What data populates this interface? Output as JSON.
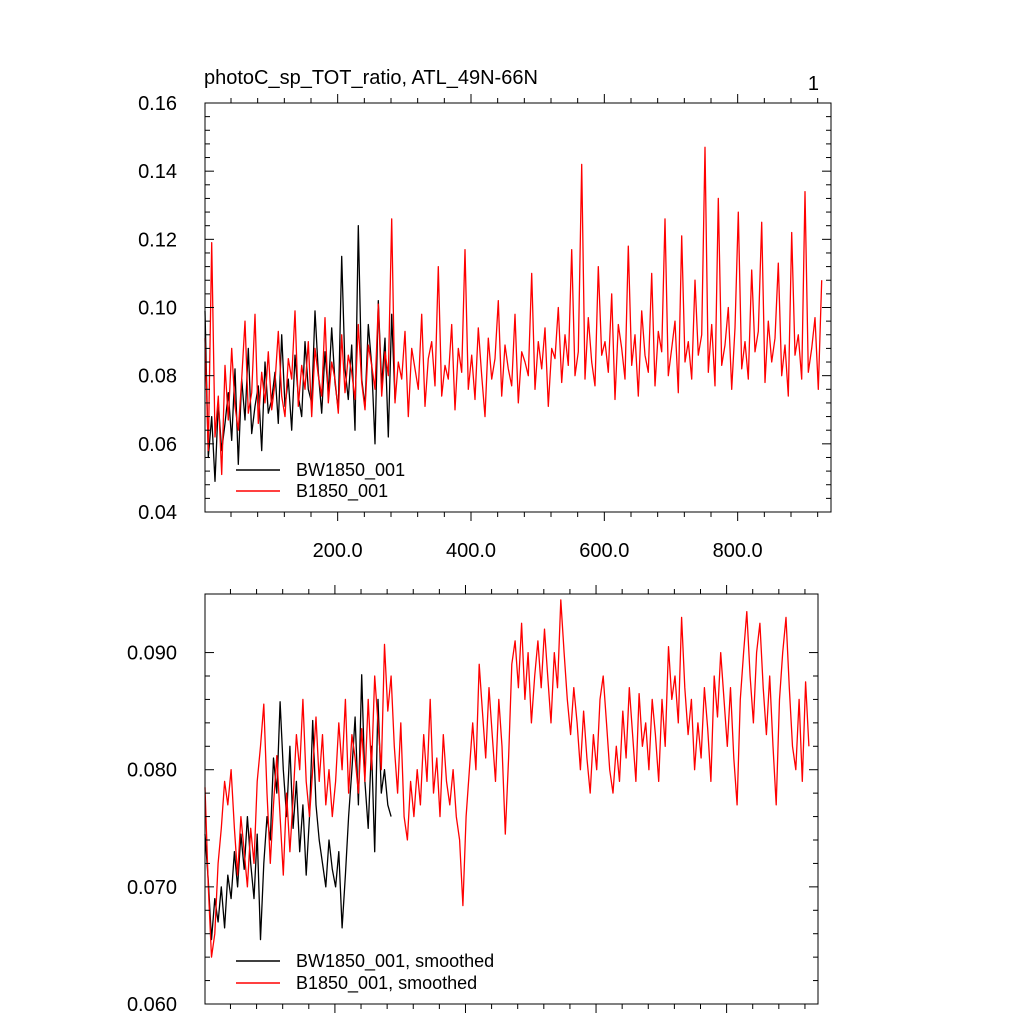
{
  "chart_data": [
    {
      "type": "line",
      "title": "photoC_sp_TOT_ratio, ATL_49N-66N",
      "panel_label": "1",
      "xlabel": "",
      "ylabel": "",
      "xlim": [
        1,
        940
      ],
      "ylim": [
        0.04,
        0.16
      ],
      "x_ticks": [
        200,
        400,
        600,
        800
      ],
      "x_tick_labels": [
        "200.0",
        "400.0",
        "600.0",
        "800.0"
      ],
      "y_ticks": [
        0.04,
        0.06,
        0.08,
        0.1,
        0.12,
        0.14,
        0.16
      ],
      "y_tick_labels": [
        "0.04",
        "0.06",
        "0.08",
        "0.10",
        "0.12",
        "0.14",
        "0.16"
      ],
      "legend_position": "bottom-left",
      "series": [
        {
          "name": "BW1850_001",
          "color": "#000000",
          "x_start": 1,
          "x_step": 5,
          "values": [
            0.099,
            0.056,
            0.068,
            0.049,
            0.072,
            0.058,
            0.066,
            0.075,
            0.061,
            0.082,
            0.054,
            0.079,
            0.067,
            0.088,
            0.063,
            0.071,
            0.077,
            0.058,
            0.084,
            0.069,
            0.073,
            0.081,
            0.066,
            0.092,
            0.071,
            0.079,
            0.064,
            0.086,
            0.074,
            0.068,
            0.09,
            0.076,
            0.072,
            0.099,
            0.081,
            0.069,
            0.087,
            0.075,
            0.094,
            0.078,
            0.07,
            0.115,
            0.082,
            0.073,
            0.089,
            0.064,
            0.124,
            0.079,
            0.071,
            0.095,
            0.083,
            0.06,
            0.102,
            0.077,
            0.091,
            0.062,
            0.098,
            0.073
          ]
        },
        {
          "name": "B1850_001",
          "color": "#ff0000",
          "x_start": 1,
          "x_step": 5,
          "values": [
            0.091,
            0.058,
            0.119,
            0.062,
            0.074,
            0.051,
            0.083,
            0.067,
            0.088,
            0.071,
            0.064,
            0.079,
            0.096,
            0.069,
            0.075,
            0.098,
            0.066,
            0.081,
            0.072,
            0.087,
            0.07,
            0.078,
            0.093,
            0.074,
            0.068,
            0.085,
            0.079,
            0.099,
            0.071,
            0.083,
            0.076,
            0.09,
            0.068,
            0.088,
            0.08,
            0.074,
            0.097,
            0.072,
            0.084,
            0.079,
            0.069,
            0.092,
            0.075,
            0.086,
            0.081,
            0.073,
            0.095,
            0.078,
            0.07,
            0.089,
            0.083,
            0.076,
            0.101,
            0.074,
            0.087,
            0.08,
            0.126,
            0.072,
            0.084,
            0.079,
            0.093,
            0.068,
            0.088,
            0.082,
            0.076,
            0.098,
            0.071,
            0.085,
            0.09,
            0.077,
            0.112,
            0.074,
            0.083,
            0.079,
            0.095,
            0.07,
            0.088,
            0.081,
            0.117,
            0.076,
            0.086,
            0.073,
            0.094,
            0.08,
            0.068,
            0.091,
            0.079,
            0.085,
            0.102,
            0.074,
            0.089,
            0.082,
            0.077,
            0.098,
            0.072,
            0.087,
            0.084,
            0.08,
            0.11,
            0.076,
            0.09,
            0.082,
            0.094,
            0.071,
            0.088,
            0.085,
            0.1,
            0.078,
            0.092,
            0.083,
            0.117,
            0.08,
            0.087,
            0.142,
            0.079,
            0.097,
            0.084,
            0.077,
            0.112,
            0.086,
            0.09,
            0.081,
            0.104,
            0.073,
            0.095,
            0.088,
            0.079,
            0.118,
            0.083,
            0.092,
            0.074,
            0.099,
            0.086,
            0.081,
            0.11,
            0.077,
            0.093,
            0.087,
            0.126,
            0.08,
            0.088,
            0.096,
            0.075,
            0.121,
            0.084,
            0.09,
            0.079,
            0.108,
            0.086,
            0.092,
            0.147,
            0.081,
            0.095,
            0.077,
            0.132,
            0.083,
            0.089,
            0.1,
            0.076,
            0.094,
            0.128,
            0.082,
            0.09,
            0.079,
            0.111,
            0.087,
            0.093,
            0.125,
            0.078,
            0.096,
            0.084,
            0.091,
            0.113,
            0.08,
            0.089,
            0.074,
            0.122,
            0.086,
            0.092,
            0.079,
            0.134,
            0.081,
            0.088,
            0.097,
            0.076,
            0.108
          ]
        }
      ]
    },
    {
      "type": "line",
      "title": "",
      "xlabel": "",
      "ylabel": "",
      "xlim": [
        1,
        940
      ],
      "ylim": [
        0.06,
        0.095
      ],
      "x_ticks": [
        200,
        400,
        600,
        800
      ],
      "y_ticks": [
        0.06,
        0.07,
        0.08,
        0.09
      ],
      "y_tick_labels": [
        "0.060",
        "0.070",
        "0.080",
        "0.090"
      ],
      "legend_position": "bottom-left",
      "series": [
        {
          "name": "BW1850_001, smoothed",
          "color": "#000000",
          "x_start": 1,
          "x_step": 5,
          "values": [
            0.0745,
            0.0705,
            0.0655,
            0.069,
            0.067,
            0.07,
            0.0665,
            0.071,
            0.069,
            0.073,
            0.07,
            0.0745,
            0.0715,
            0.076,
            0.072,
            0.069,
            0.0745,
            0.0655,
            0.072,
            0.076,
            0.074,
            0.081,
            0.078,
            0.0858,
            0.08,
            0.076,
            0.082,
            0.075,
            0.079,
            0.073,
            0.077,
            0.071,
            0.076,
            0.0842,
            0.077,
            0.074,
            0.072,
            0.07,
            0.074,
            0.0715,
            0.07,
            0.073,
            0.0665,
            0.071,
            0.076,
            0.08,
            0.0845,
            0.077,
            0.0881,
            0.079,
            0.075,
            0.082,
            0.073,
            0.086,
            0.078,
            0.08,
            0.077,
            0.076
          ]
        },
        {
          "name": "B1850_001, smoothed",
          "color": "#ff0000",
          "x_start": 1,
          "x_step": 5,
          "values": [
            0.0785,
            0.07,
            0.064,
            0.066,
            0.072,
            0.075,
            0.079,
            0.077,
            0.08,
            0.075,
            0.071,
            0.076,
            0.073,
            0.07,
            0.075,
            0.072,
            0.079,
            0.082,
            0.0856,
            0.078,
            0.072,
            0.077,
            0.0812,
            0.076,
            0.071,
            0.078,
            0.073,
            0.0775,
            0.083,
            0.08,
            0.086,
            0.079,
            0.076,
            0.08,
            0.0845,
            0.079,
            0.083,
            0.077,
            0.08,
            0.076,
            0.079,
            0.084,
            0.08,
            0.086,
            0.078,
            0.083,
            0.081,
            0.078,
            0.0835,
            0.079,
            0.086,
            0.08,
            0.088,
            0.084,
            0.08,
            0.0907,
            0.085,
            0.088,
            0.082,
            0.078,
            0.084,
            0.076,
            0.074,
            0.079,
            0.076,
            0.08,
            0.077,
            0.083,
            0.079,
            0.086,
            0.078,
            0.081,
            0.076,
            0.083,
            0.079,
            0.077,
            0.08,
            0.076,
            0.074,
            0.0684,
            0.076,
            0.08,
            0.084,
            0.08,
            0.089,
            0.085,
            0.081,
            0.087,
            0.083,
            0.079,
            0.086,
            0.082,
            0.0745,
            0.081,
            0.089,
            0.091,
            0.087,
            0.0925,
            0.086,
            0.09,
            0.084,
            0.088,
            0.091,
            0.087,
            0.092,
            0.088,
            0.084,
            0.09,
            0.087,
            0.0945,
            0.09,
            0.086,
            0.083,
            0.087,
            0.084,
            0.08,
            0.085,
            0.081,
            0.078,
            0.083,
            0.08,
            0.086,
            0.088,
            0.084,
            0.08,
            0.078,
            0.082,
            0.079,
            0.085,
            0.081,
            0.087,
            0.083,
            0.079,
            0.0865,
            0.082,
            0.084,
            0.08,
            0.086,
            0.083,
            0.079,
            0.086,
            0.082,
            0.0905,
            0.086,
            0.088,
            0.084,
            0.093,
            0.087,
            0.083,
            0.086,
            0.08,
            0.084,
            0.081,
            0.087,
            0.0835,
            0.079,
            0.088,
            0.0845,
            0.09,
            0.086,
            0.082,
            0.087,
            0.081,
            0.077,
            0.086,
            0.09,
            0.0935,
            0.088,
            0.084,
            0.09,
            0.0925,
            0.087,
            0.083,
            0.088,
            0.082,
            0.077,
            0.086,
            0.09,
            0.093,
            0.087,
            0.082,
            0.08,
            0.086,
            0.079,
            0.0875,
            0.082
          ]
        }
      ]
    }
  ]
}
